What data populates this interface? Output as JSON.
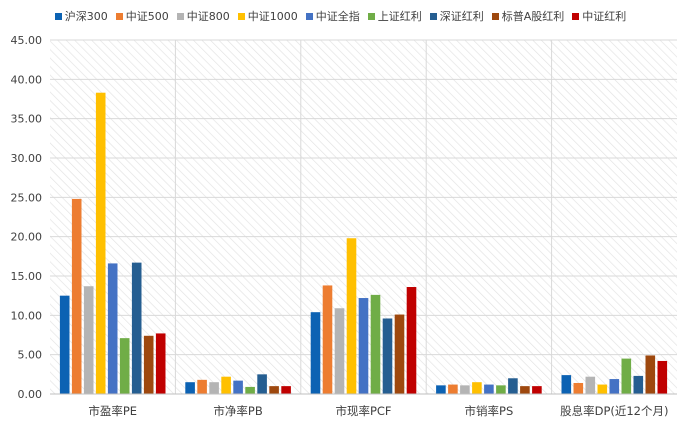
{
  "chart_data": {
    "type": "bar",
    "categories": [
      "市盈率PE",
      "市净率PB",
      "市现率PCF",
      "市销率PS",
      "股息率DP(近12个月)"
    ],
    "series": [
      {
        "name": "沪深300",
        "color": "#0C62B3",
        "values": [
          12.5,
          1.5,
          10.4,
          1.1,
          2.4
        ]
      },
      {
        "name": "中证500",
        "color": "#ED7D31",
        "values": [
          24.8,
          1.8,
          13.8,
          1.2,
          1.4
        ]
      },
      {
        "name": "中证800",
        "color": "#B4B4B4",
        "values": [
          13.7,
          1.5,
          10.9,
          1.1,
          2.2
        ]
      },
      {
        "name": "中证1000",
        "color": "#FFC000",
        "values": [
          38.3,
          2.2,
          19.8,
          1.5,
          1.2
        ]
      },
      {
        "name": "中证全指",
        "color": "#4472C4",
        "values": [
          16.6,
          1.7,
          12.2,
          1.2,
          1.9
        ]
      },
      {
        "name": "上证红利",
        "color": "#70AD47",
        "values": [
          7.1,
          0.9,
          12.6,
          1.1,
          4.5
        ]
      },
      {
        "name": "深证红利",
        "color": "#255E91",
        "values": [
          16.7,
          2.5,
          9.6,
          2.0,
          2.3
        ]
      },
      {
        "name": "标普A股红利",
        "color": "#9E480E",
        "values": [
          7.4,
          1.0,
          10.1,
          1.0,
          4.9
        ]
      },
      {
        "name": "中证红利",
        "color": "#C00000",
        "values": [
          7.7,
          1.0,
          13.6,
          1.0,
          4.2
        ]
      }
    ],
    "ylim": [
      0,
      45
    ],
    "yticks": [
      "0.00",
      "5.00",
      "10.00",
      "15.00",
      "20.00",
      "25.00",
      "30.00",
      "35.00",
      "40.00",
      "45.00"
    ],
    "grid": true,
    "legend_position": "top",
    "xlabel": "",
    "ylabel": ""
  }
}
